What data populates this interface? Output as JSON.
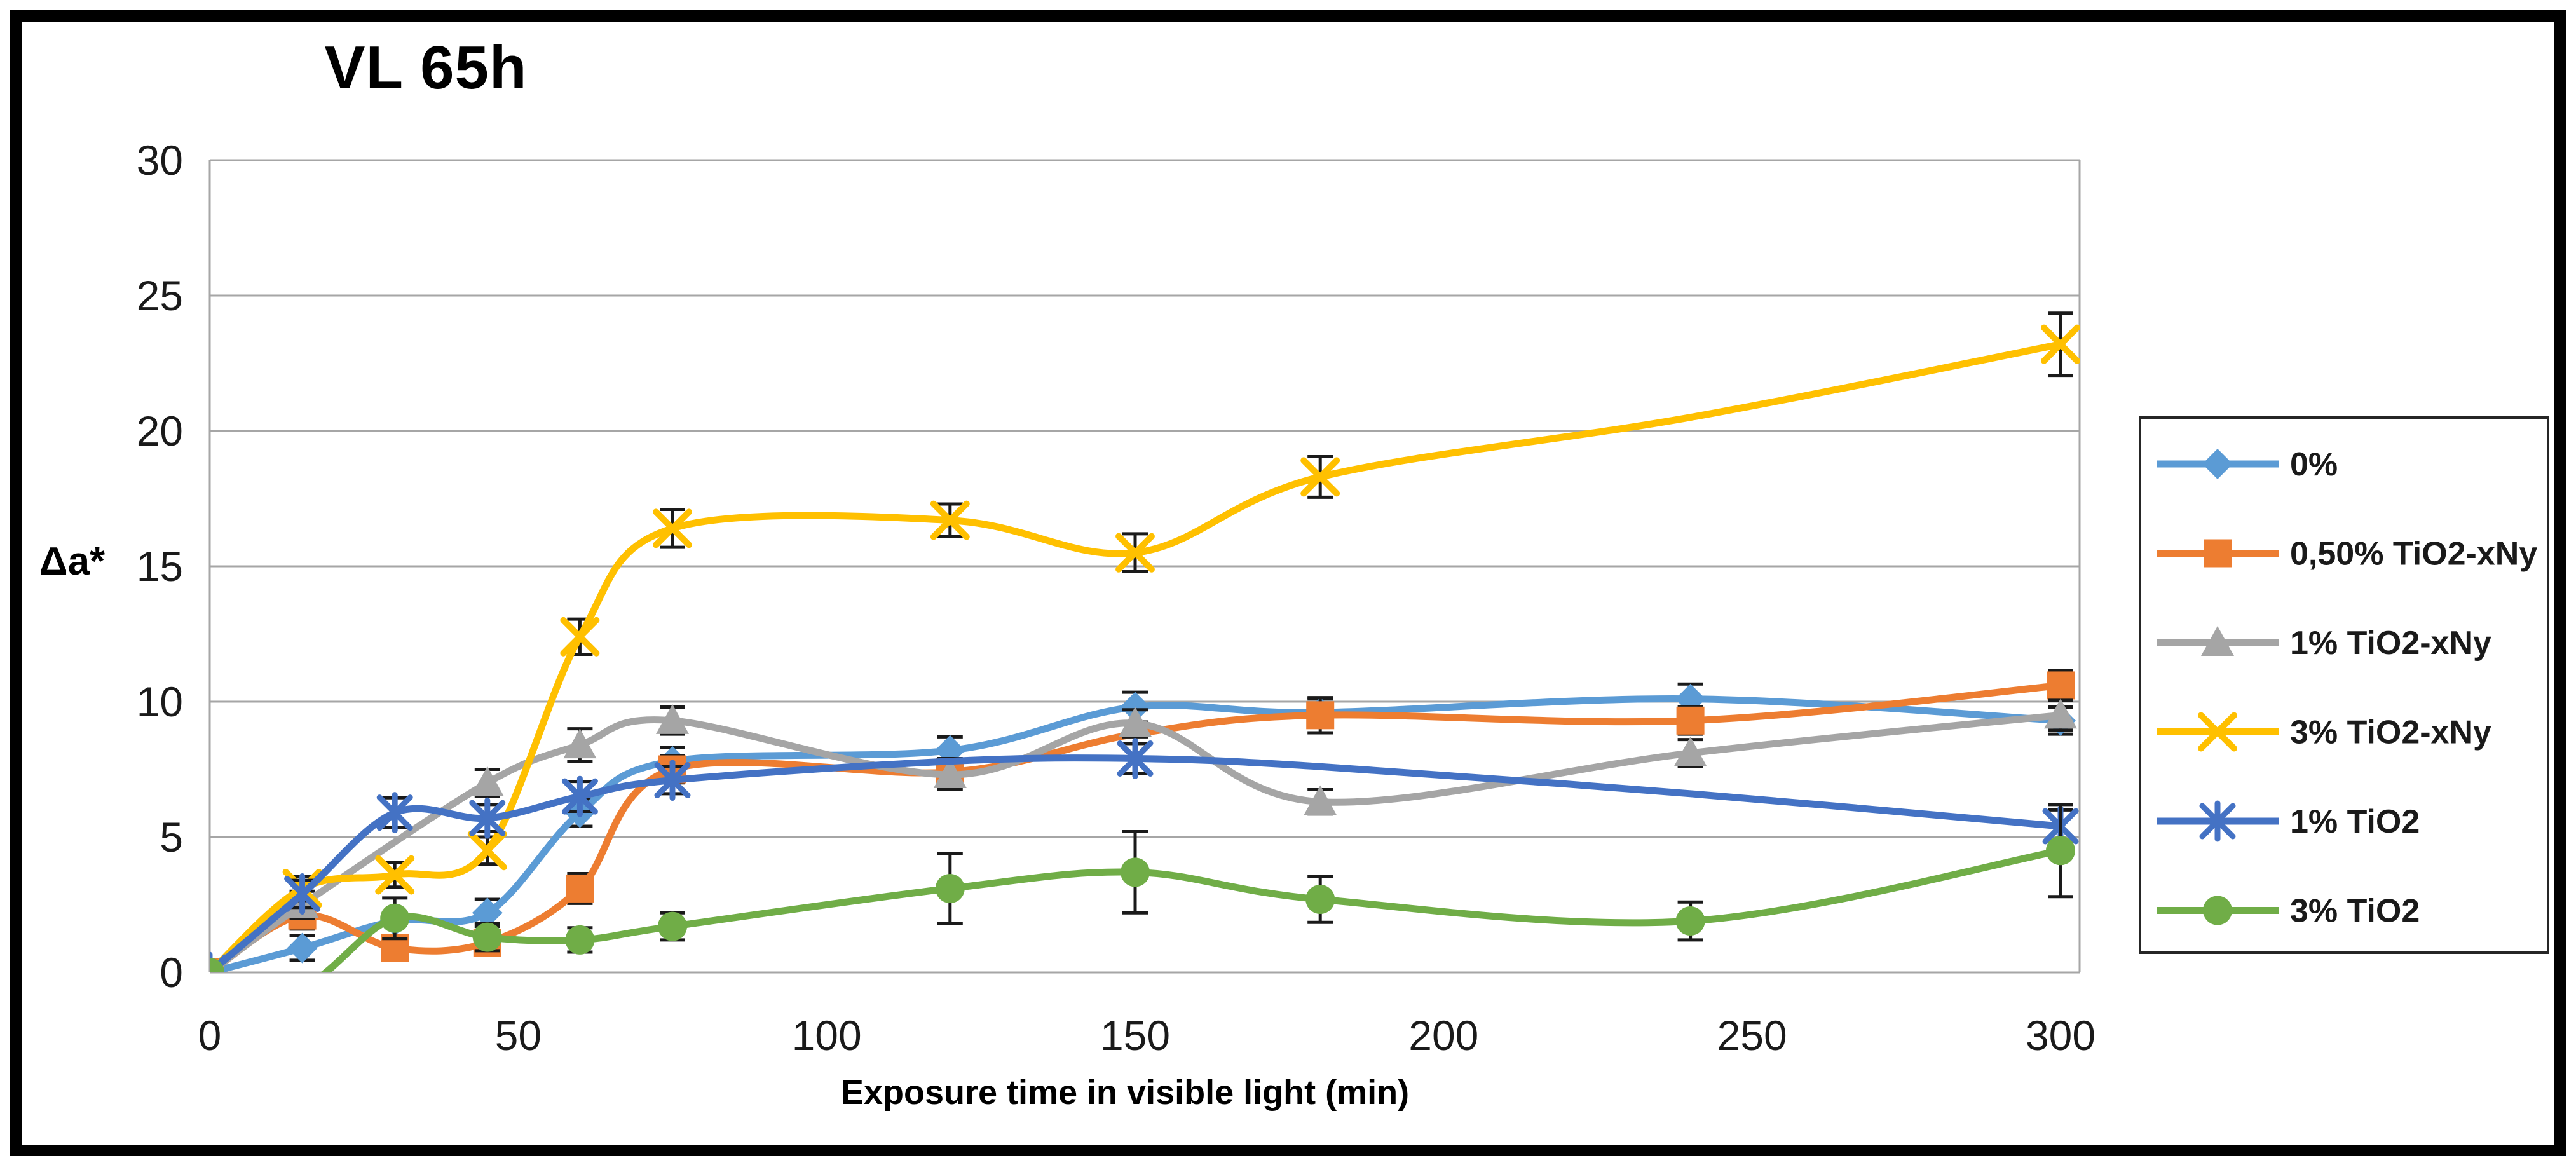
{
  "chart_data": {
    "type": "line",
    "title": "VL 65h",
    "xlabel": "Exposure time in visible light (min)",
    "ylabel": "Δa*",
    "xlim": [
      0,
      300
    ],
    "ylim": [
      0,
      30
    ],
    "x_ticks": [
      0,
      50,
      100,
      150,
      200,
      250,
      300
    ],
    "y_ticks": [
      0,
      5,
      10,
      15,
      20,
      25,
      30
    ],
    "grid": "horizontal",
    "legend_position": "right",
    "error_bars": true,
    "x": [
      0,
      15,
      30,
      45,
      60,
      75,
      120,
      150,
      180,
      240,
      300
    ],
    "series": [
      {
        "name": "0%",
        "color": "#5B9BD5",
        "marker": "diamond",
        "values": [
          0,
          0.9,
          1.9,
          2.2,
          5.9,
          7.8,
          8.2,
          9.8,
          9.6,
          10.1,
          9.3
        ],
        "errors": [
          null,
          0.45,
          null,
          0.5,
          0.5,
          0.5,
          0.5,
          0.55,
          0.5,
          0.55,
          0.5
        ],
        "marker_shown": [
          1,
          1,
          1,
          1,
          1,
          1,
          1,
          1,
          1,
          1,
          1
        ]
      },
      {
        "name": "0,50% TiO2-xNy",
        "color": "#ED7D31",
        "marker": "square",
        "values": [
          0,
          2.1,
          0.9,
          1.1,
          3.1,
          7.5,
          7.4,
          8.8,
          9.5,
          9.3,
          10.6
        ],
        "errors": [
          null,
          0.5,
          0.4,
          0.45,
          0.55,
          0.5,
          0.5,
          null,
          0.65,
          0.5,
          0.55
        ],
        "marker_shown": [
          1,
          1,
          1,
          1,
          1,
          1,
          1,
          0,
          1,
          1,
          1
        ]
      },
      {
        "name": "1% TiO2-xNy",
        "color": "#A5A5A5",
        "marker": "triangle",
        "values": [
          0,
          2.5,
          null,
          7.0,
          8.4,
          9.3,
          7.3,
          9.2,
          6.3,
          8.1,
          9.5
        ],
        "errors": [
          null,
          0.5,
          null,
          0.5,
          0.6,
          0.5,
          0.55,
          0.5,
          0.45,
          0.5,
          0.55
        ],
        "marker_shown": [
          1,
          1,
          0,
          1,
          1,
          1,
          1,
          1,
          1,
          1,
          1
        ]
      },
      {
        "name": "3% TiO2-xNy",
        "color": "#FFC000",
        "marker": "x",
        "values": [
          0,
          3.1,
          3.6,
          4.5,
          12.4,
          16.4,
          16.7,
          15.5,
          18.3,
          20.5,
          23.2
        ],
        "errors": [
          null,
          0.45,
          0.45,
          0.5,
          0.65,
          0.7,
          0.6,
          0.7,
          0.75,
          null,
          1.15
        ],
        "marker_shown": [
          1,
          1,
          1,
          1,
          1,
          1,
          1,
          1,
          1,
          0,
          1
        ]
      },
      {
        "name": "1% TiO2",
        "color": "#4472C4",
        "marker": "asterisk",
        "values": [
          0,
          2.9,
          5.9,
          5.7,
          6.5,
          7.1,
          7.8,
          7.9,
          7.6,
          6.6,
          5.4
        ],
        "errors": [
          null,
          0.5,
          0.55,
          0.5,
          0.55,
          0.5,
          null,
          0.55,
          null,
          null,
          0.6
        ],
        "marker_shown": [
          1,
          1,
          1,
          1,
          1,
          1,
          0,
          1,
          0,
          0,
          1
        ]
      },
      {
        "name": "3% TiO2",
        "color": "#70AD47",
        "marker": "circle",
        "values": [
          0,
          -0.5,
          2.0,
          1.3,
          1.2,
          1.7,
          3.1,
          3.7,
          2.7,
          1.9,
          4.5
        ],
        "errors": [
          null,
          null,
          0.75,
          0.5,
          0.45,
          0.5,
          1.3,
          1.5,
          0.85,
          0.7,
          1.7
        ],
        "marker_shown": [
          1,
          0,
          1,
          1,
          1,
          1,
          1,
          1,
          1,
          1,
          1
        ]
      }
    ]
  }
}
